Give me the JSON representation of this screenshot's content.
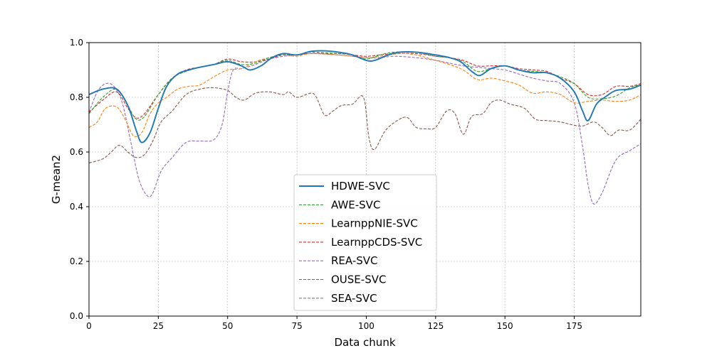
{
  "chart_data": {
    "type": "line",
    "title": "",
    "xlabel": "Data chunk",
    "ylabel": "G-mean2",
    "xlim": [
      0,
      199
    ],
    "ylim": [
      0.0,
      1.0
    ],
    "xticks": [
      0,
      25,
      50,
      75,
      100,
      125,
      150,
      175
    ],
    "xtick_labels": [
      "0",
      "25",
      "50",
      "75",
      "100",
      "125",
      "150",
      "175"
    ],
    "yticks": [
      0.0,
      0.2,
      0.4,
      0.6,
      0.8,
      1.0
    ],
    "ytick_labels": [
      "0.0",
      "0.2",
      "0.4",
      "0.6",
      "0.8",
      "1.0"
    ],
    "grid": true,
    "legend_position": "lower-center",
    "series": [
      {
        "name": "HDWE-SVC",
        "color": "#1f77b4",
        "style": "solid",
        "points": [
          [
            0,
            0.81
          ],
          [
            5,
            0.83
          ],
          [
            10,
            0.83
          ],
          [
            14,
            0.77
          ],
          [
            17,
            0.68
          ],
          [
            19,
            0.635
          ],
          [
            22,
            0.67
          ],
          [
            25,
            0.76
          ],
          [
            28,
            0.84
          ],
          [
            32,
            0.885
          ],
          [
            36,
            0.9
          ],
          [
            40,
            0.91
          ],
          [
            45,
            0.92
          ],
          [
            50,
            0.93
          ],
          [
            55,
            0.915
          ],
          [
            58,
            0.9
          ],
          [
            62,
            0.915
          ],
          [
            66,
            0.945
          ],
          [
            70,
            0.96
          ],
          [
            75,
            0.955
          ],
          [
            80,
            0.968
          ],
          [
            85,
            0.97
          ],
          [
            90,
            0.965
          ],
          [
            95,
            0.955
          ],
          [
            100,
            0.935
          ],
          [
            103,
            0.935
          ],
          [
            108,
            0.955
          ],
          [
            112,
            0.965
          ],
          [
            118,
            0.965
          ],
          [
            125,
            0.955
          ],
          [
            130,
            0.945
          ],
          [
            134,
            0.93
          ],
          [
            138,
            0.895
          ],
          [
            141,
            0.88
          ],
          [
            145,
            0.905
          ],
          [
            150,
            0.915
          ],
          [
            155,
            0.9
          ],
          [
            160,
            0.89
          ],
          [
            165,
            0.89
          ],
          [
            170,
            0.87
          ],
          [
            175,
            0.82
          ],
          [
            178,
            0.75
          ],
          [
            180,
            0.715
          ],
          [
            183,
            0.775
          ],
          [
            186,
            0.8
          ],
          [
            190,
            0.825
          ],
          [
            195,
            0.83
          ],
          [
            199,
            0.845
          ]
        ]
      },
      {
        "name": "AWE-SVC",
        "color": "#2ca02c",
        "style": "dashed",
        "points": [
          [
            0,
            0.74
          ],
          [
            5,
            0.8
          ],
          [
            10,
            0.83
          ],
          [
            14,
            0.77
          ],
          [
            17,
            0.72
          ],
          [
            20,
            0.73
          ],
          [
            25,
            0.81
          ],
          [
            30,
            0.87
          ],
          [
            35,
            0.895
          ],
          [
            40,
            0.91
          ],
          [
            45,
            0.92
          ],
          [
            50,
            0.935
          ],
          [
            55,
            0.92
          ],
          [
            60,
            0.925
          ],
          [
            65,
            0.945
          ],
          [
            70,
            0.955
          ],
          [
            75,
            0.955
          ],
          [
            80,
            0.965
          ],
          [
            90,
            0.96
          ],
          [
            95,
            0.955
          ],
          [
            100,
            0.94
          ],
          [
            105,
            0.955
          ],
          [
            110,
            0.965
          ],
          [
            118,
            0.965
          ],
          [
            125,
            0.95
          ],
          [
            130,
            0.945
          ],
          [
            135,
            0.93
          ],
          [
            140,
            0.895
          ],
          [
            145,
            0.905
          ],
          [
            150,
            0.915
          ],
          [
            155,
            0.9
          ],
          [
            160,
            0.895
          ],
          [
            165,
            0.89
          ],
          [
            170,
            0.875
          ],
          [
            175,
            0.85
          ],
          [
            180,
            0.8
          ],
          [
            185,
            0.795
          ],
          [
            190,
            0.805
          ],
          [
            195,
            0.835
          ],
          [
            199,
            0.845
          ]
        ]
      },
      {
        "name": "LearnppNIE-SVC",
        "color": "#ff7f0e",
        "style": "dashed",
        "points": [
          [
            0,
            0.69
          ],
          [
            3,
            0.71
          ],
          [
            6,
            0.76
          ],
          [
            10,
            0.765
          ],
          [
            13,
            0.72
          ],
          [
            16,
            0.66
          ],
          [
            19,
            0.67
          ],
          [
            22,
            0.74
          ],
          [
            25,
            0.78
          ],
          [
            28,
            0.8
          ],
          [
            32,
            0.83
          ],
          [
            36,
            0.84
          ],
          [
            40,
            0.845
          ],
          [
            45,
            0.875
          ],
          [
            50,
            0.9
          ],
          [
            55,
            0.905
          ],
          [
            60,
            0.93
          ],
          [
            65,
            0.945
          ],
          [
            70,
            0.955
          ],
          [
            75,
            0.95
          ],
          [
            80,
            0.96
          ],
          [
            90,
            0.955
          ],
          [
            100,
            0.945
          ],
          [
            105,
            0.95
          ],
          [
            112,
            0.96
          ],
          [
            118,
            0.955
          ],
          [
            125,
            0.935
          ],
          [
            130,
            0.92
          ],
          [
            135,
            0.9
          ],
          [
            140,
            0.865
          ],
          [
            145,
            0.87
          ],
          [
            150,
            0.86
          ],
          [
            155,
            0.845
          ],
          [
            160,
            0.815
          ],
          [
            165,
            0.82
          ],
          [
            170,
            0.81
          ],
          [
            175,
            0.78
          ],
          [
            180,
            0.785
          ],
          [
            185,
            0.79
          ],
          [
            190,
            0.785
          ],
          [
            195,
            0.79
          ],
          [
            199,
            0.81
          ]
        ]
      },
      {
        "name": "LearnppCDS-SVC",
        "color": "#d62728",
        "style": "dashed",
        "points": [
          [
            0,
            0.745
          ],
          [
            5,
            0.79
          ],
          [
            10,
            0.82
          ],
          [
            14,
            0.76
          ],
          [
            17,
            0.725
          ],
          [
            20,
            0.74
          ],
          [
            25,
            0.81
          ],
          [
            30,
            0.87
          ],
          [
            35,
            0.9
          ],
          [
            40,
            0.91
          ],
          [
            45,
            0.92
          ],
          [
            50,
            0.94
          ],
          [
            55,
            0.93
          ],
          [
            60,
            0.93
          ],
          [
            65,
            0.94
          ],
          [
            70,
            0.955
          ],
          [
            75,
            0.955
          ],
          [
            80,
            0.96
          ],
          [
            90,
            0.96
          ],
          [
            95,
            0.955
          ],
          [
            100,
            0.95
          ],
          [
            105,
            0.955
          ],
          [
            110,
            0.96
          ],
          [
            118,
            0.96
          ],
          [
            125,
            0.95
          ],
          [
            130,
            0.945
          ],
          [
            135,
            0.935
          ],
          [
            140,
            0.915
          ],
          [
            145,
            0.915
          ],
          [
            150,
            0.915
          ],
          [
            155,
            0.905
          ],
          [
            160,
            0.9
          ],
          [
            165,
            0.895
          ],
          [
            170,
            0.87
          ],
          [
            175,
            0.85
          ],
          [
            180,
            0.81
          ],
          [
            185,
            0.81
          ],
          [
            190,
            0.84
          ],
          [
            195,
            0.84
          ],
          [
            199,
            0.85
          ]
        ]
      },
      {
        "name": "REA-SVC",
        "color": "#9467bd",
        "style": "dashed",
        "points": [
          [
            0,
            0.745
          ],
          [
            3,
            0.82
          ],
          [
            6,
            0.85
          ],
          [
            9,
            0.84
          ],
          [
            12,
            0.78
          ],
          [
            15,
            0.64
          ],
          [
            18,
            0.5
          ],
          [
            21,
            0.44
          ],
          [
            23,
            0.45
          ],
          [
            26,
            0.53
          ],
          [
            30,
            0.58
          ],
          [
            35,
            0.635
          ],
          [
            40,
            0.64
          ],
          [
            45,
            0.645
          ],
          [
            48,
            0.7
          ],
          [
            50,
            0.82
          ],
          [
            52,
            0.9
          ],
          [
            55,
            0.905
          ],
          [
            60,
            0.92
          ],
          [
            65,
            0.94
          ],
          [
            70,
            0.95
          ],
          [
            75,
            0.955
          ],
          [
            80,
            0.96
          ],
          [
            90,
            0.955
          ],
          [
            100,
            0.945
          ],
          [
            105,
            0.945
          ],
          [
            110,
            0.95
          ],
          [
            118,
            0.945
          ],
          [
            125,
            0.935
          ],
          [
            130,
            0.925
          ],
          [
            135,
            0.915
          ],
          [
            140,
            0.91
          ],
          [
            145,
            0.905
          ],
          [
            150,
            0.9
          ],
          [
            155,
            0.885
          ],
          [
            160,
            0.87
          ],
          [
            165,
            0.86
          ],
          [
            170,
            0.85
          ],
          [
            175,
            0.78
          ],
          [
            178,
            0.62
          ],
          [
            180,
            0.48
          ],
          [
            182,
            0.41
          ],
          [
            185,
            0.45
          ],
          [
            190,
            0.57
          ],
          [
            195,
            0.605
          ],
          [
            199,
            0.63
          ]
        ]
      },
      {
        "name": "OUSE-SVC",
        "color": "#8c564b",
        "style": "dashed",
        "points": [
          [
            0,
            0.56
          ],
          [
            5,
            0.575
          ],
          [
            8,
            0.6
          ],
          [
            11,
            0.625
          ],
          [
            14,
            0.6
          ],
          [
            17,
            0.58
          ],
          [
            20,
            0.59
          ],
          [
            23,
            0.64
          ],
          [
            26,
            0.71
          ],
          [
            30,
            0.75
          ],
          [
            35,
            0.81
          ],
          [
            40,
            0.83
          ],
          [
            45,
            0.835
          ],
          [
            50,
            0.825
          ],
          [
            53,
            0.8
          ],
          [
            56,
            0.79
          ],
          [
            60,
            0.815
          ],
          [
            65,
            0.82
          ],
          [
            70,
            0.81
          ],
          [
            72,
            0.82
          ],
          [
            75,
            0.8
          ],
          [
            80,
            0.815
          ],
          [
            82,
            0.8
          ],
          [
            85,
            0.735
          ],
          [
            88,
            0.75
          ],
          [
            91,
            0.77
          ],
          [
            95,
            0.775
          ],
          [
            99,
            0.8
          ],
          [
            101,
            0.65
          ],
          [
            103,
            0.61
          ],
          [
            107,
            0.68
          ],
          [
            112,
            0.72
          ],
          [
            115,
            0.725
          ],
          [
            118,
            0.69
          ],
          [
            122,
            0.685
          ],
          [
            125,
            0.69
          ],
          [
            129,
            0.75
          ],
          [
            132,
            0.74
          ],
          [
            135,
            0.665
          ],
          [
            138,
            0.73
          ],
          [
            142,
            0.74
          ],
          [
            145,
            0.78
          ],
          [
            148,
            0.79
          ],
          [
            152,
            0.775
          ],
          [
            157,
            0.76
          ],
          [
            161,
            0.72
          ],
          [
            165,
            0.715
          ],
          [
            170,
            0.71
          ],
          [
            174,
            0.7
          ],
          [
            178,
            0.695
          ],
          [
            182,
            0.71
          ],
          [
            185,
            0.69
          ],
          [
            188,
            0.66
          ],
          [
            191,
            0.68
          ],
          [
            195,
            0.68
          ],
          [
            199,
            0.72
          ]
        ]
      },
      {
        "name": "SEA-SVC",
        "color": "#7f7f7f",
        "style": "dashed",
        "points": []
      }
    ]
  }
}
